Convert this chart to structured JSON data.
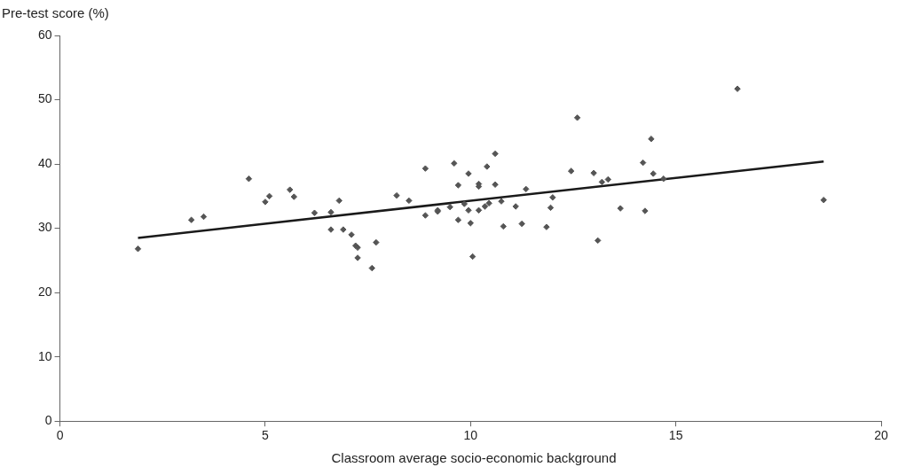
{
  "chart_data": {
    "type": "scatter",
    "xlabel": "Classroom average socio-economic background",
    "ylabel": "Pre-test score (%)",
    "xlim": [
      0,
      20
    ],
    "xticks": [
      0,
      5,
      10,
      15,
      20
    ],
    "ylim": [
      0,
      60
    ],
    "yticks": [
      0,
      10,
      20,
      30,
      40,
      50,
      60
    ],
    "grid": false,
    "legend": false,
    "marker": "diamond",
    "series": [
      {
        "color": "#555555",
        "x": [
          1.9,
          3.2,
          3.5,
          4.6,
          5.0,
          5.1,
          5.6,
          5.7,
          6.2,
          6.6,
          6.6,
          6.8,
          6.9,
          7.1,
          7.2,
          7.25,
          7.25,
          7.6,
          7.7,
          8.2,
          8.5,
          8.9,
          8.9,
          9.2,
          9.2,
          9.5,
          9.6,
          9.7,
          9.7,
          9.85,
          9.95,
          9.95,
          10.0,
          10.05,
          10.2,
          10.2,
          10.2,
          10.35,
          10.4,
          10.45,
          10.6,
          10.6,
          10.75,
          10.8,
          11.1,
          11.25,
          11.35,
          11.85,
          11.95,
          12.0,
          12.45,
          12.6,
          13.0,
          13.1,
          13.2,
          13.35,
          13.65,
          14.2,
          14.25,
          14.4,
          14.45,
          14.7,
          16.5,
          18.6
        ],
        "values": [
          26.8,
          31.3,
          31.8,
          37.7,
          34.1,
          35.0,
          36.0,
          34.9,
          32.4,
          32.5,
          29.8,
          34.3,
          29.8,
          29.0,
          27.3,
          27.0,
          25.4,
          23.8,
          27.8,
          35.1,
          34.3,
          32.0,
          39.3,
          32.6,
          32.8,
          33.3,
          40.1,
          36.7,
          31.3,
          33.8,
          38.5,
          32.8,
          30.8,
          25.6,
          36.9,
          36.5,
          32.8,
          33.4,
          39.6,
          33.9,
          41.6,
          36.8,
          34.2,
          30.3,
          33.4,
          30.7,
          36.1,
          30.2,
          33.2,
          34.8,
          38.9,
          47.2,
          38.6,
          28.1,
          37.2,
          37.6,
          33.1,
          40.2,
          32.7,
          43.9,
          38.5,
          37.7,
          51.7,
          34.4
        ]
      },
      {
        "type": "line",
        "color": "#1a1a1a",
        "marker": "none",
        "x": [
          1.9,
          18.6
        ],
        "values": [
          28.5,
          40.4
        ]
      }
    ]
  }
}
